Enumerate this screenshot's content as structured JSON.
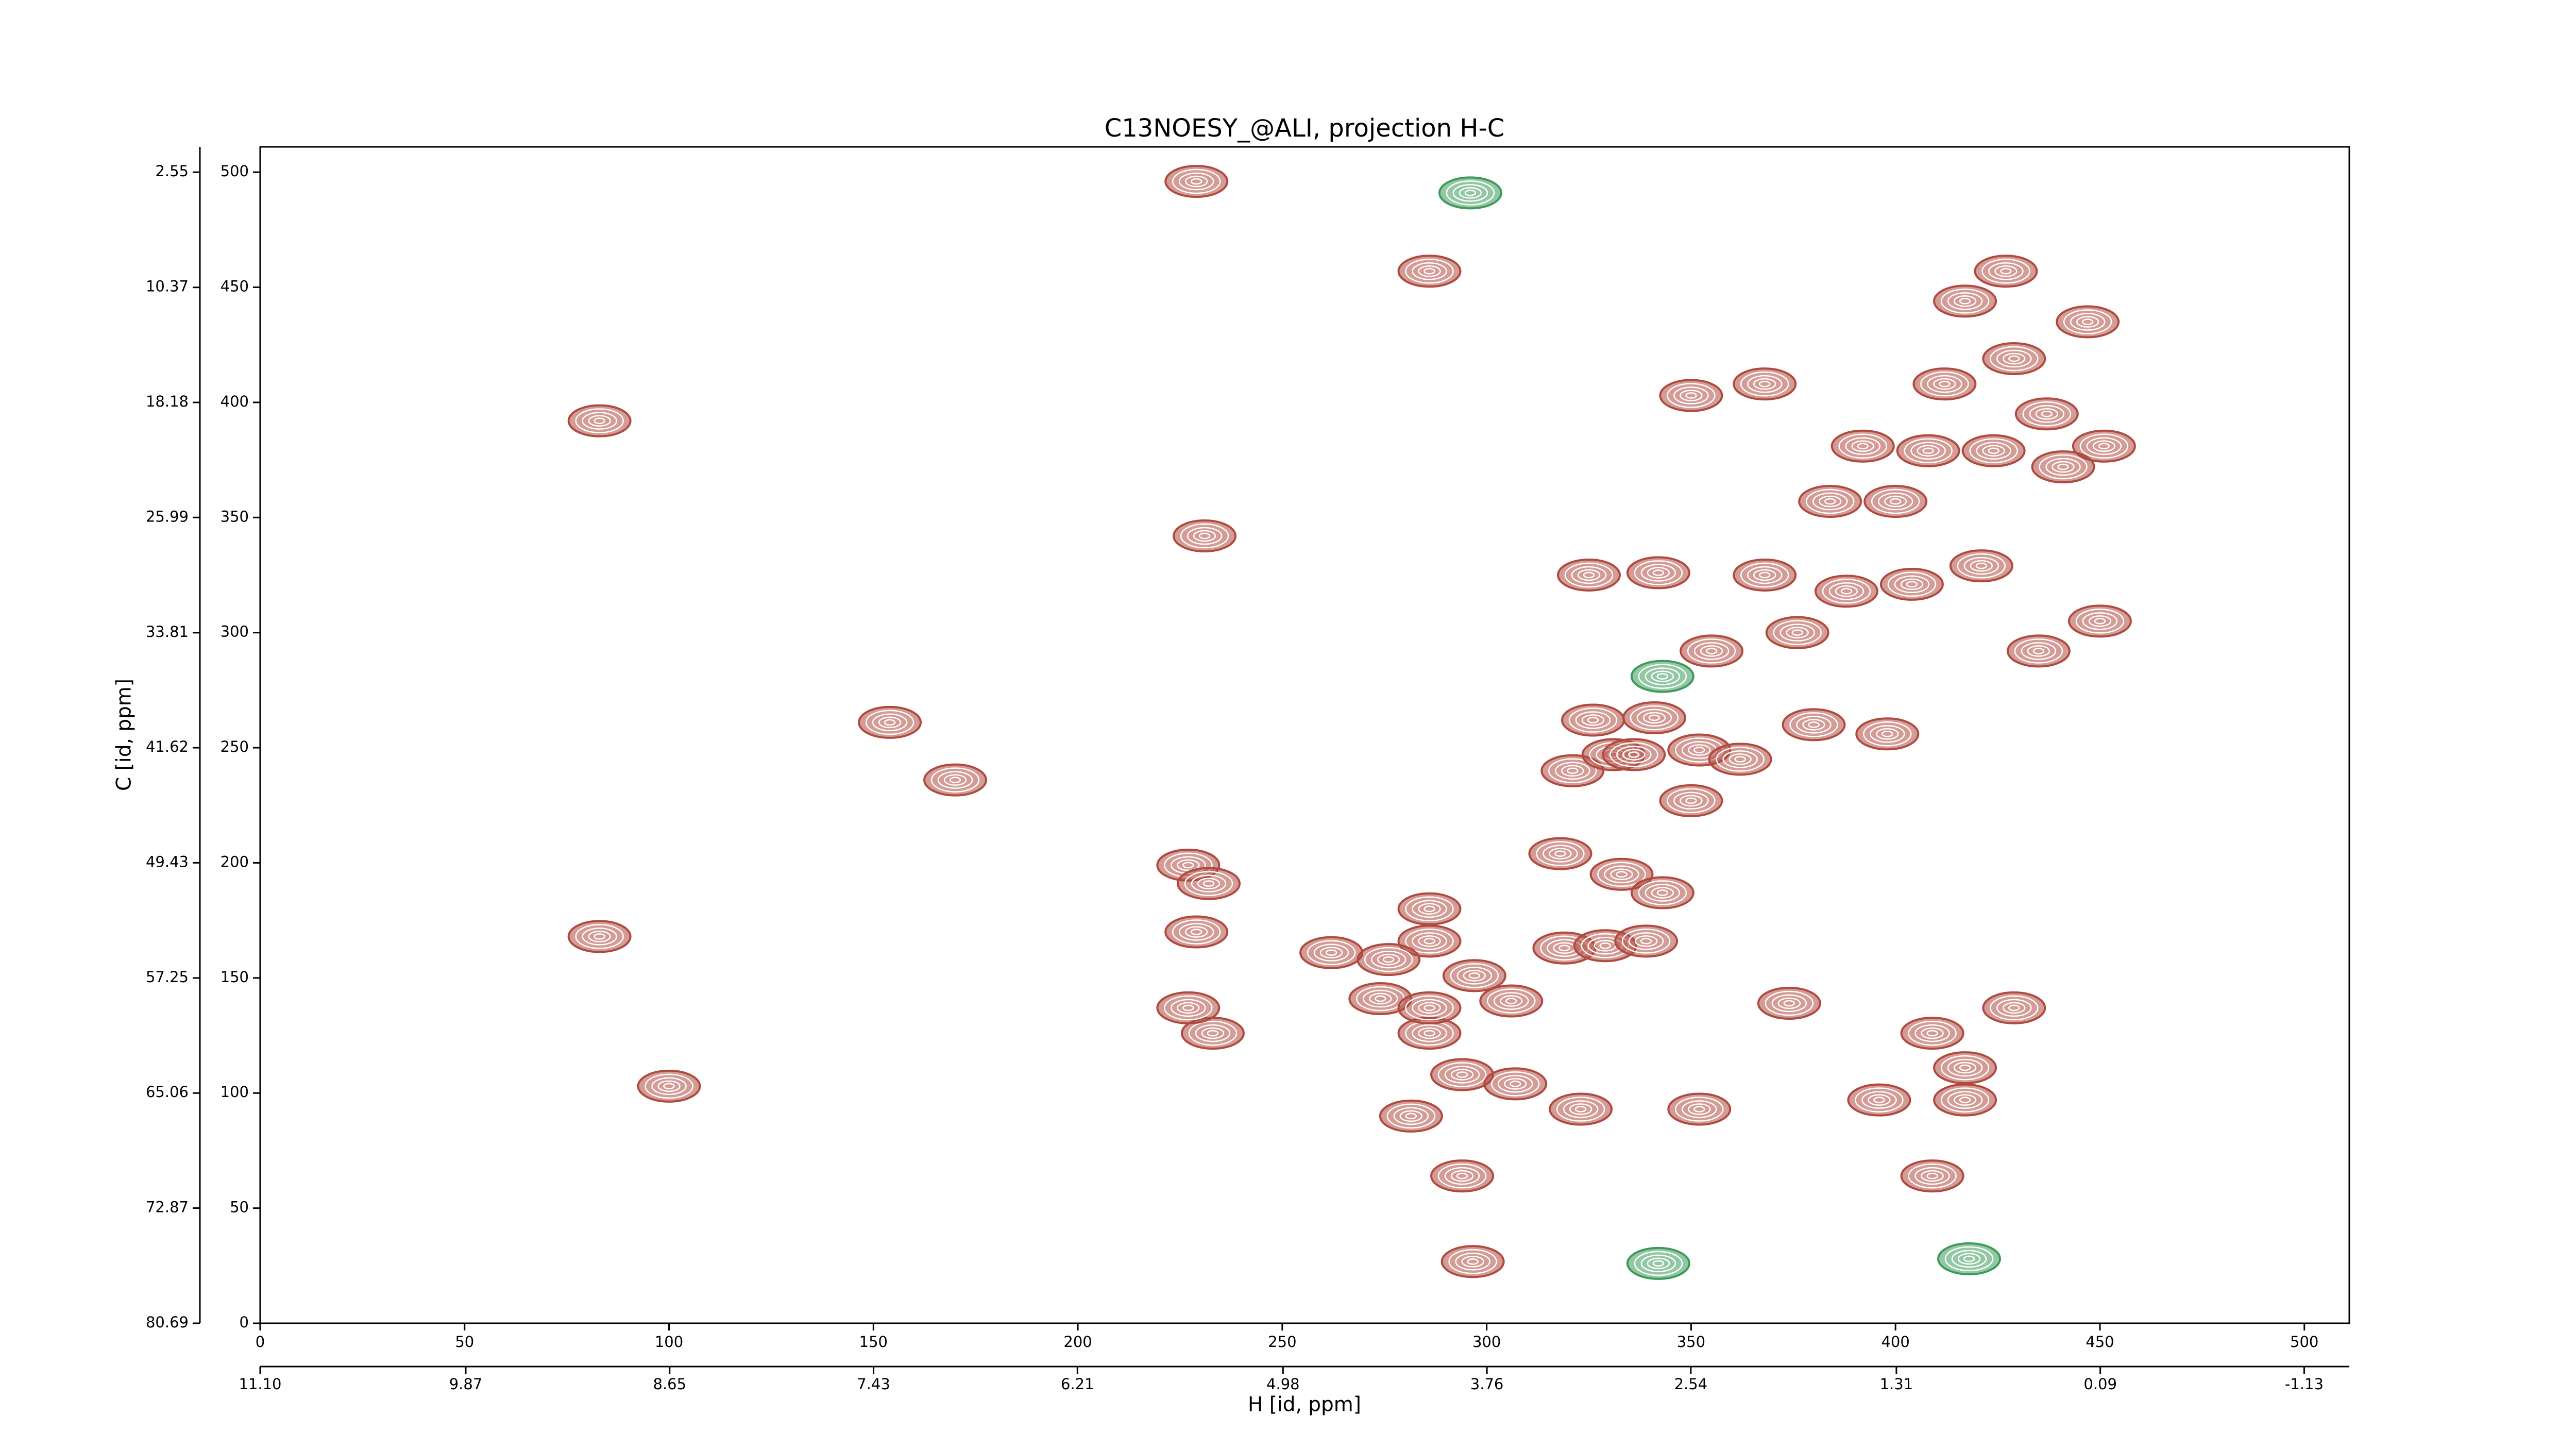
{
  "chart_data": {
    "type": "contour",
    "title": "C13NOESY_@ALI, projection H-C",
    "xlabel": "H [id, ppm]",
    "ylabel": "C [id, ppm]",
    "xlim": [
      0,
      511
    ],
    "ylim": [
      0,
      511
    ],
    "xticks": [
      0,
      50,
      100,
      150,
      200,
      250,
      300,
      350,
      400,
      450,
      500
    ],
    "yticks": [
      0,
      50,
      100,
      150,
      200,
      250,
      300,
      350,
      400,
      450,
      500
    ],
    "x2lim": [
      11.1,
      -1.4
    ],
    "x2ticks": [
      {
        "value": 11.1,
        "label": "11.10"
      },
      9.87,
      8.65,
      7.43,
      6.21,
      4.98,
      3.76,
      2.54,
      1.31,
      0.09,
      -1.13
    ],
    "y2lim": [
      80.69,
      0.83
    ],
    "y2ticks": [
      2.55,
      10.37,
      18.18,
      25.99,
      33.81,
      41.62,
      49.43,
      57.25,
      65.06,
      72.87,
      80.69
    ],
    "series": [
      {
        "color": "#b04a3f",
        "x": [
          296.6,
          294,
          281.5,
          294,
          307,
          323,
          286,
          274,
          286,
          297,
          306,
          286,
          276,
          262,
          319,
          329,
          339,
          229,
          227,
          232,
          233,
          227,
          286,
          318,
          333,
          350,
          321,
          331,
          336,
          326,
          341,
          352,
          380,
          398,
          362,
          325,
          342,
          355,
          368,
          376,
          388,
          404,
          421,
          435,
          450,
          368,
          392,
          408,
          424,
          441,
          451,
          447,
          417,
          427,
          412,
          437,
          384,
          400,
          429,
          417,
          417,
          409,
          429,
          409,
          352,
          396,
          374,
          343,
          229,
          286,
          350,
          231,
          100,
          83,
          154,
          170,
          83
        ],
        "y": [
          26.8,
          64,
          90,
          108,
          104,
          93,
          126,
          141,
          137,
          151,
          140,
          166,
          158,
          161,
          163,
          164,
          166,
          170,
          199,
          191,
          126,
          137,
          180,
          204,
          195,
          227,
          240,
          247,
          247,
          262,
          263,
          249,
          260,
          256,
          245,
          325,
          326,
          292,
          325,
          300,
          318,
          321,
          329,
          292,
          305,
          408,
          381,
          379,
          379,
          372,
          381,
          435,
          444,
          457,
          408,
          395,
          357,
          357,
          419,
          111,
          97,
          64,
          137,
          126,
          93,
          97,
          139,
          187,
          496,
          457,
          403,
          342,
          103,
          168,
          261,
          236,
          392
        ]
      },
      {
        "color": "#3c9a5a",
        "x": [
          296,
          342,
          343,
          418
        ],
        "y": [
          491,
          26,
          281,
          28
        ]
      }
    ]
  }
}
